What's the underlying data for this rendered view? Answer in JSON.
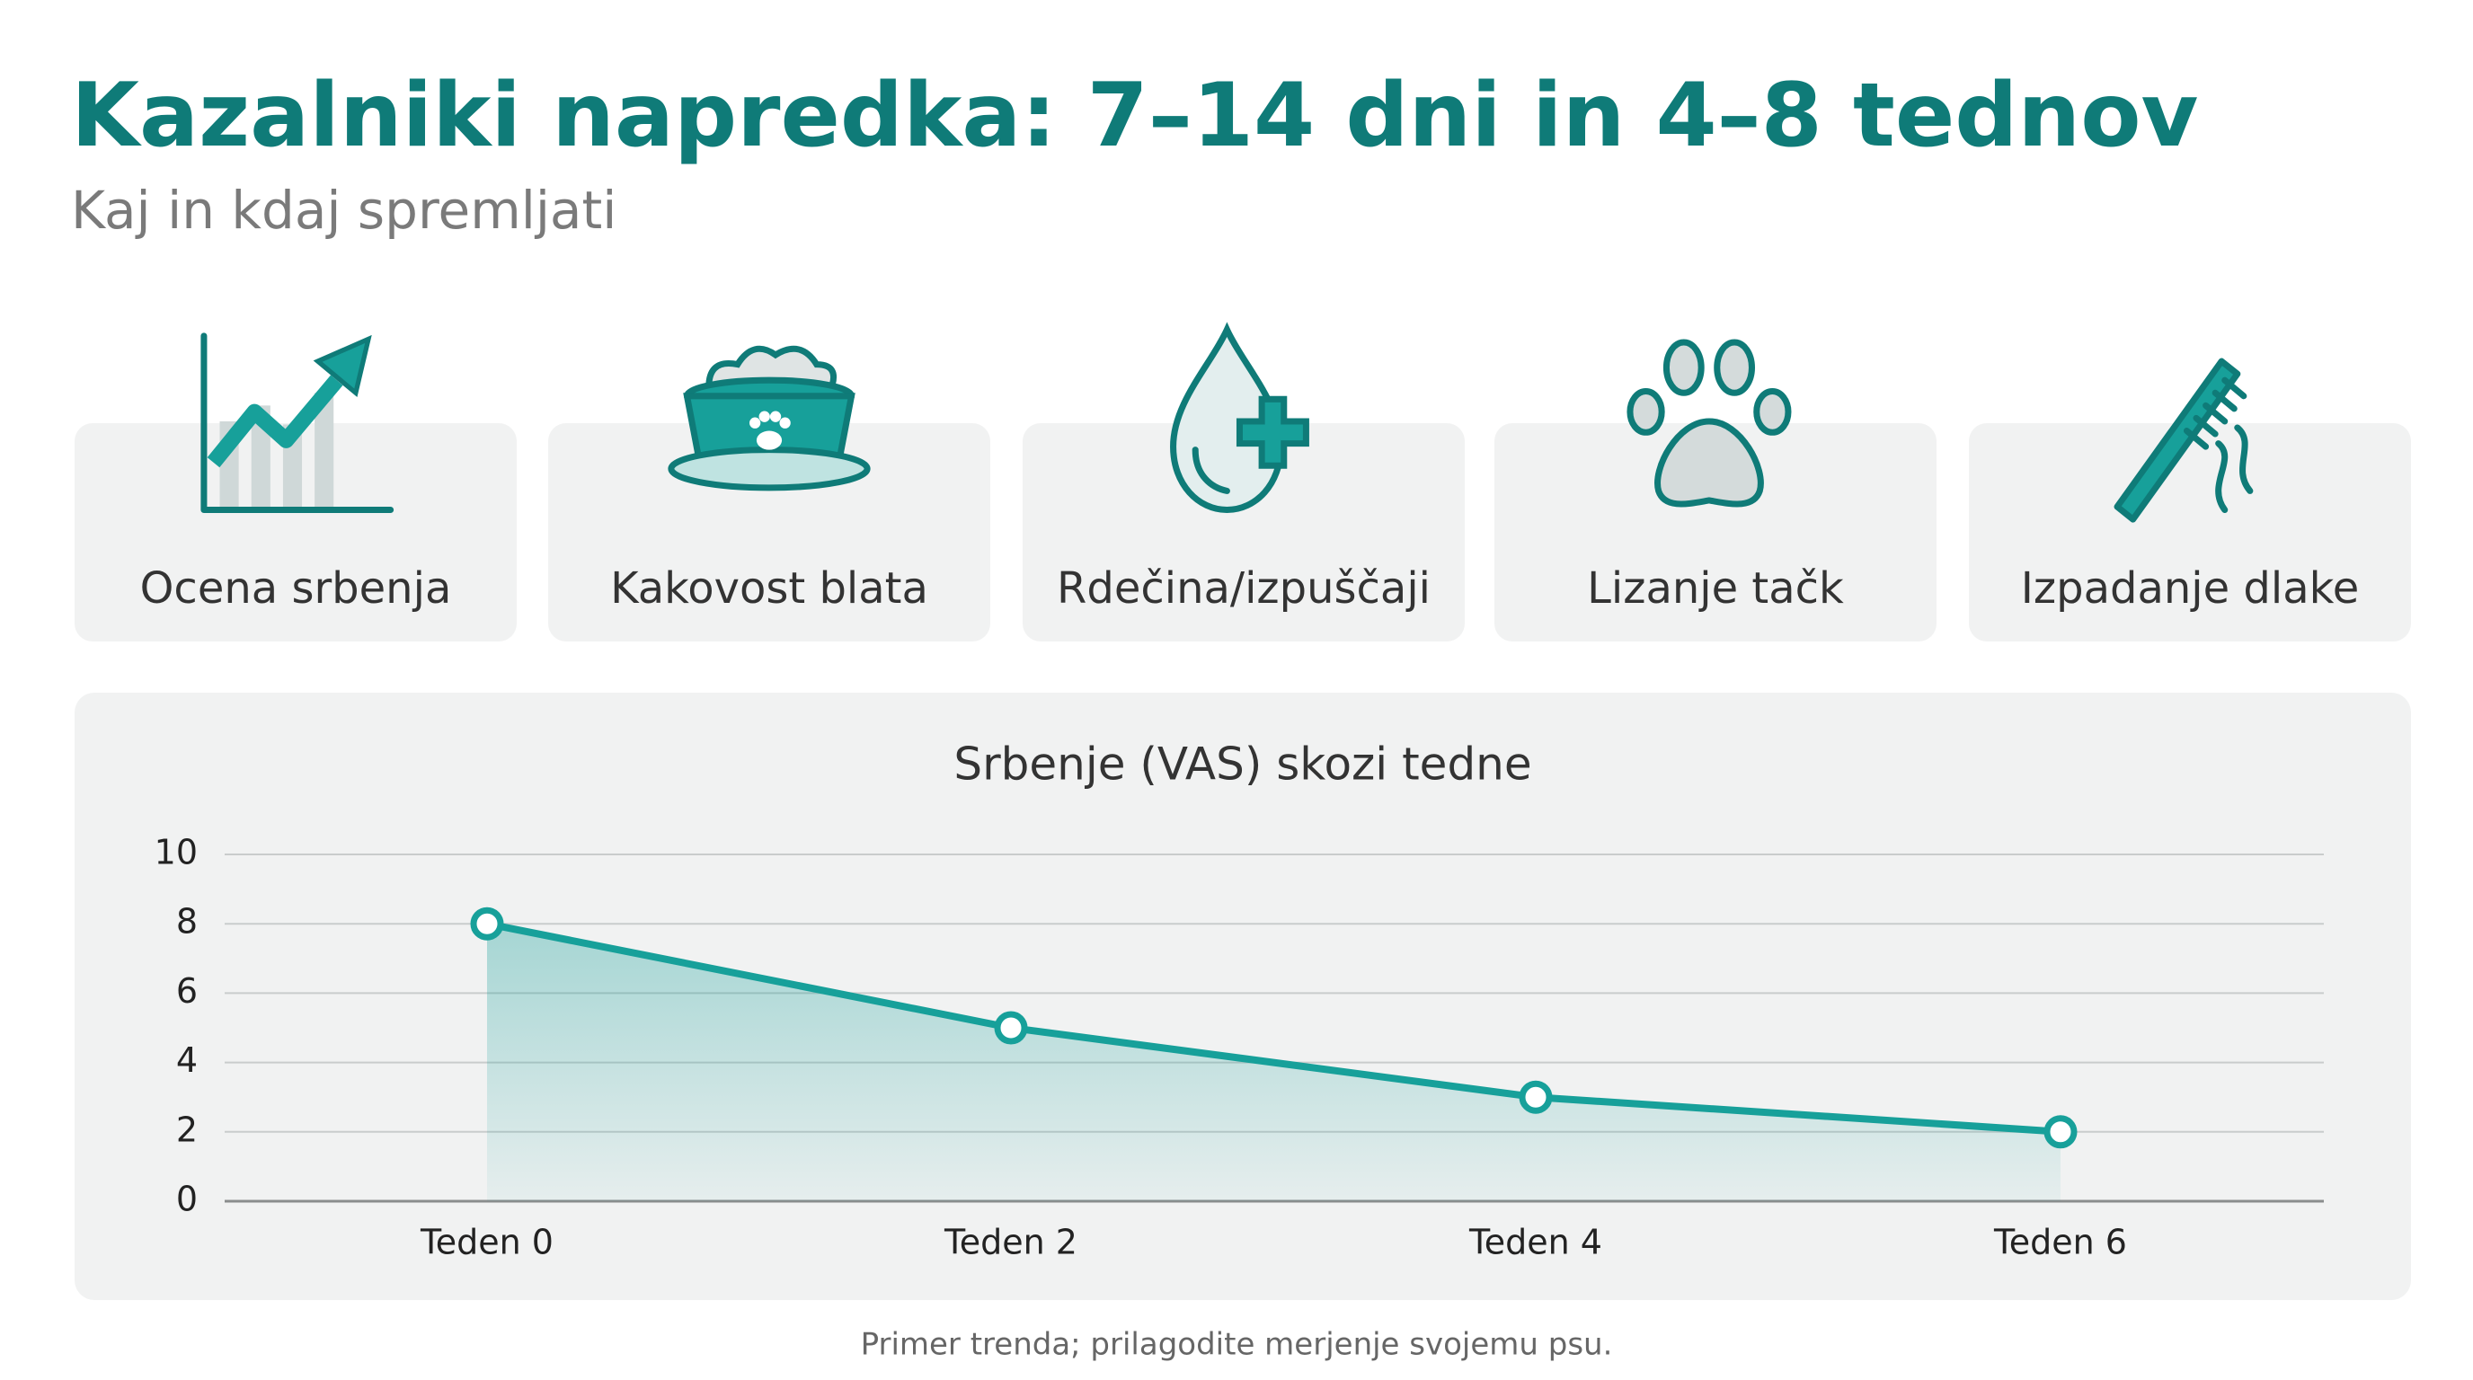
{
  "title": "Kazalniki napredka: 7–14 dni in 4–8 tednov",
  "subtitle": "Kaj in kdaj spremljati",
  "indicators": [
    "Ocena srbenja",
    "Kakovost blata",
    "Rdečina/izpuščaji",
    "Lizanje tačk",
    "Izpadanje dlake"
  ],
  "chart_data": {
    "type": "line",
    "title": "Srbenje (VAS) skozi tedne",
    "categories": [
      "Teden 0",
      "Teden 2",
      "Teden 4",
      "Teden 6"
    ],
    "values": [
      8,
      5,
      3,
      2
    ],
    "color": "#17a09a",
    "ylim": [
      0,
      10
    ],
    "yticks": [
      0,
      2,
      4,
      6,
      8,
      10
    ],
    "grid": true
  },
  "footnote": "Primer trenda; prilagodite merjenje svojemu psu."
}
